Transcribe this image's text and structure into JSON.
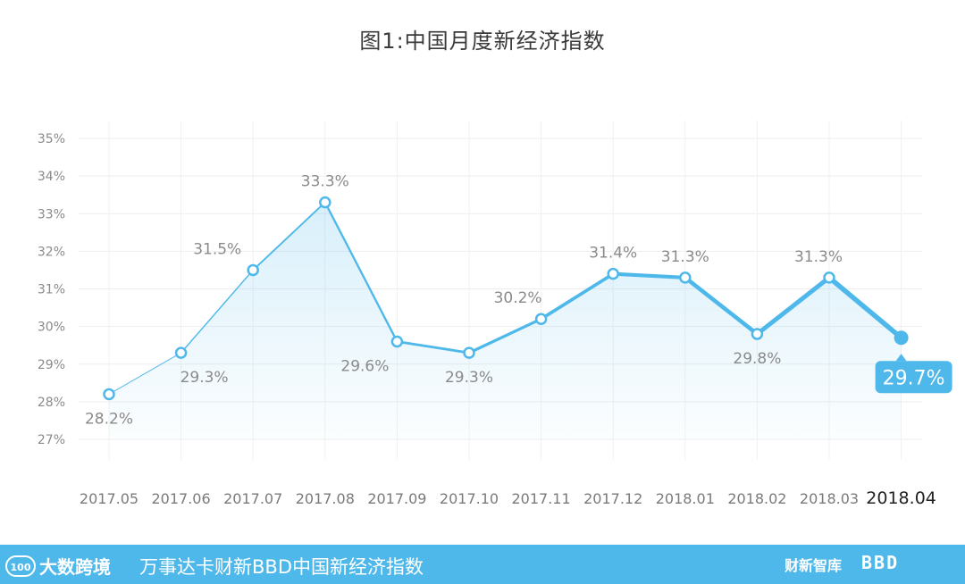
{
  "chart_data": {
    "type": "line",
    "title": "图1:中国月度新经济指数",
    "categories": [
      "2017.05",
      "2017.06",
      "2017.07",
      "2017.08",
      "2017.09",
      "2017.10",
      "2017.11",
      "2017.12",
      "2018.01",
      "2018.02",
      "2018.03",
      "2018.04"
    ],
    "values": [
      28.2,
      29.3,
      31.5,
      33.3,
      29.6,
      29.3,
      30.2,
      31.4,
      31.3,
      29.8,
      31.3,
      29.7
    ],
    "data_labels": [
      "28.2%",
      "29.3%",
      "31.5%",
      "33.3%",
      "29.6%",
      "29.3%",
      "30.2%",
      "31.4%",
      "31.3%",
      "29.8%",
      "31.3%",
      "29.7%"
    ],
    "y_ticks": [
      "27%",
      "28%",
      "29%",
      "30%",
      "31%",
      "32%",
      "33%",
      "34%",
      "35%"
    ],
    "ylim": [
      27,
      35
    ],
    "grid": true,
    "line_color": "#4fb8ea",
    "highlight_index": 11
  },
  "footer": {
    "logo_mark": "100",
    "logo_text": "大数跨境",
    "subtitle": "万事达卡财新BBD中国新经济指数",
    "partner_logo": "财新智库",
    "partner_logo2": "BBD"
  }
}
